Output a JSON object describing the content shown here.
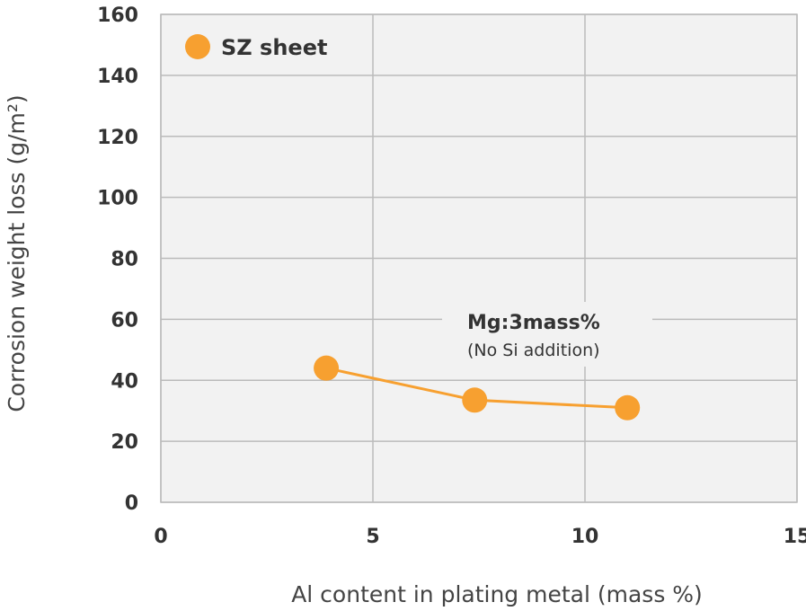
{
  "chart_data": {
    "type": "line",
    "xlabel": "Al content in plating metal (mass %)",
    "ylabel": "Corrosion weight loss (g/m²)",
    "xlim": [
      0,
      15
    ],
    "ylim": [
      0,
      160
    ],
    "xticks": [
      0,
      5,
      10,
      15
    ],
    "yticks": [
      0,
      20,
      40,
      60,
      80,
      100,
      120,
      140,
      160
    ],
    "grid": true,
    "legend_position": "top-left",
    "series": [
      {
        "name": "SZ sheet",
        "color": "#f7a030",
        "x": [
          3.9,
          7.4,
          11.0
        ],
        "y": [
          44,
          33.5,
          31
        ]
      }
    ],
    "annotation": {
      "line1": "Mg:3mass%",
      "line2": "(No Si addition)"
    }
  },
  "colors": {
    "plot_background": "#f2f2f2",
    "grid": "#bbbbbb",
    "series": "#f7a030"
  }
}
